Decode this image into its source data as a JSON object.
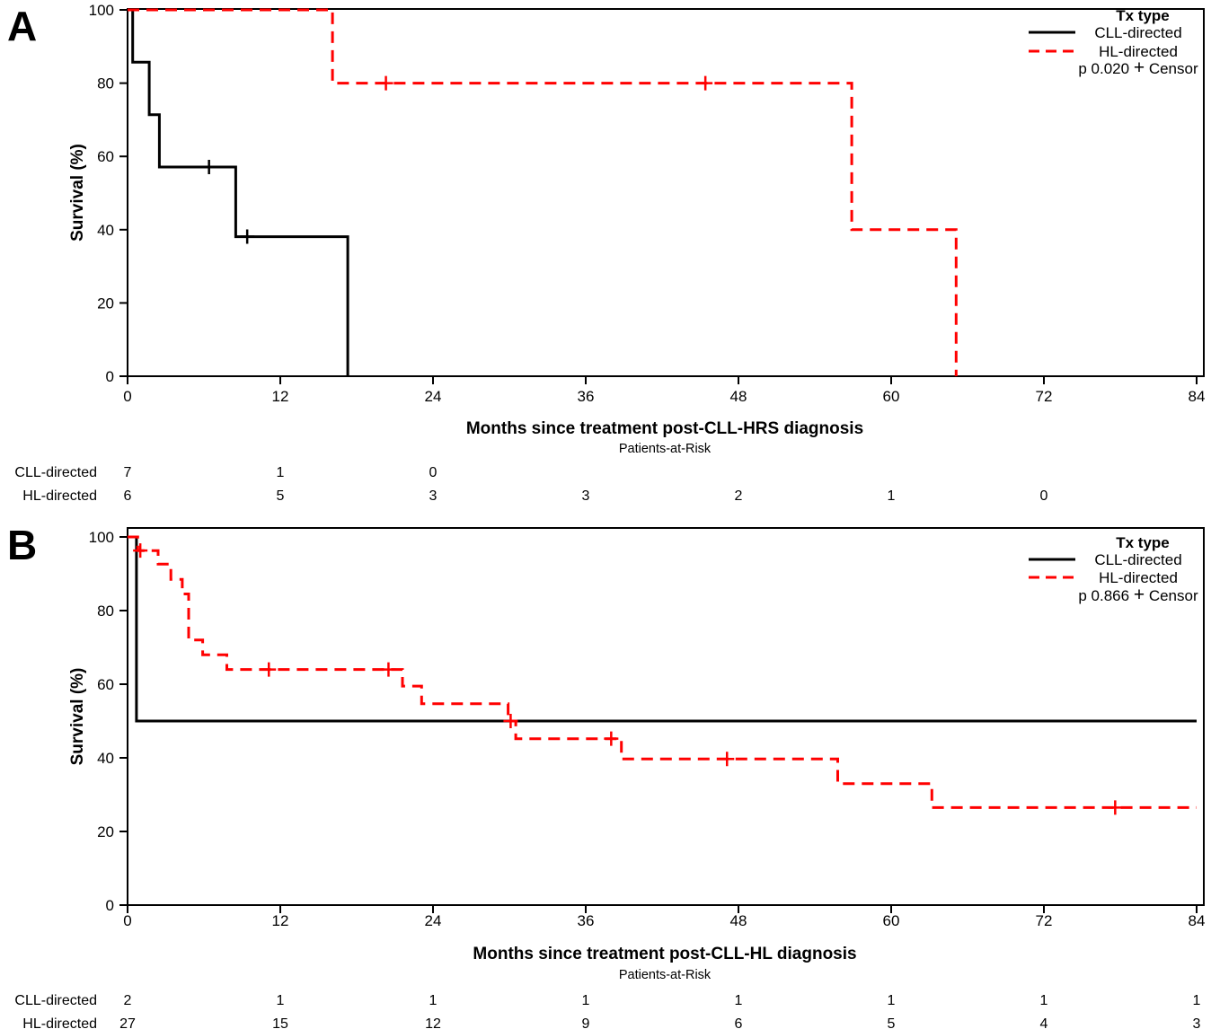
{
  "figure": {
    "panels": [
      {
        "label": "A",
        "legend": {
          "title": "Tx type",
          "entries": [
            {
              "label": "CLL-directed",
              "color": "#000000",
              "dash": false
            },
            {
              "label": "HL-directed",
              "color": "#FF0000",
              "dash": true
            }
          ],
          "p_label": "p 0.020",
          "censor_label": "Censor"
        },
        "risk_table": {
          "title": "Patients-at-Risk",
          "rows": [
            {
              "label": "CLL-directed",
              "values": [
                "7",
                "1",
                "0",
                "",
                "",
                "",
                "",
                ""
              ]
            },
            {
              "label": "HL-directed",
              "values": [
                "6",
                "5",
                "3",
                "3",
                "2",
                "1",
                "0",
                ""
              ]
            }
          ]
        }
      },
      {
        "label": "B",
        "legend": {
          "title": "Tx type",
          "entries": [
            {
              "label": "CLL-directed",
              "color": "#000000",
              "dash": false
            },
            {
              "label": "HL-directed",
              "color": "#FF0000",
              "dash": true
            }
          ],
          "p_label": "p 0.866",
          "censor_label": "Censor"
        },
        "risk_table": {
          "title": "Patients-at-Risk",
          "rows": [
            {
              "label": "CLL-directed",
              "values": [
                "2",
                "1",
                "1",
                "1",
                "1",
                "1",
                "1",
                "1"
              ]
            },
            {
              "label": "HL-directed",
              "values": [
                "27",
                "15",
                "12",
                "9",
                "6",
                "5",
                "4",
                "3"
              ]
            }
          ]
        }
      }
    ]
  },
  "chart_data": [
    {
      "type": "line",
      "subtype": "kaplan-meier-step",
      "title": "",
      "xlabel": "Months since treatment post-CLL-HRS diagnosis",
      "ylabel": "Survival (%)",
      "xlim": [
        0,
        84
      ],
      "xticks": [
        0,
        12,
        24,
        36,
        48,
        60,
        72,
        84
      ],
      "ylim": [
        0,
        100
      ],
      "yticks": [
        0,
        20,
        40,
        60,
        80,
        100
      ],
      "grid": false,
      "legend_position": "top-right",
      "p_value": "p 0.020",
      "series": [
        {
          "name": "CLL-directed",
          "color": "#000000",
          "dash": false,
          "end": 17.3,
          "steps": [
            [
              0,
              100
            ],
            [
              0.4,
              85.7
            ],
            [
              1.7,
              71.4
            ],
            [
              2.5,
              57.1
            ],
            [
              8.5,
              38.1
            ],
            [
              17.3,
              0
            ]
          ],
          "censors": [
            [
              6.4,
              57.1
            ],
            [
              9.4,
              38.1
            ]
          ]
        },
        {
          "name": "HL-directed",
          "color": "#FF0000",
          "dash": true,
          "end": 65.1,
          "steps": [
            [
              0,
              100
            ],
            [
              16.1,
              80
            ],
            [
              56.9,
              40
            ],
            [
              65.1,
              0
            ]
          ],
          "censors": [
            [
              20.3,
              80
            ],
            [
              45.4,
              80
            ]
          ]
        }
      ]
    },
    {
      "type": "line",
      "subtype": "kaplan-meier-step",
      "title": "",
      "xlabel": "Months since treatment post-CLL-HL diagnosis",
      "ylabel": "Survival (%)",
      "xlim": [
        0,
        84
      ],
      "xticks": [
        0,
        12,
        24,
        36,
        48,
        60,
        72,
        84
      ],
      "ylim": [
        0,
        100
      ],
      "yticks": [
        0,
        20,
        40,
        60,
        80,
        100
      ],
      "grid": false,
      "legend_position": "top-right",
      "p_value": "p 0.866",
      "series": [
        {
          "name": "CLL-directed",
          "color": "#000000",
          "dash": false,
          "end": 84,
          "steps": [
            [
              0,
              100
            ],
            [
              0.7,
              50
            ]
          ],
          "censors": []
        },
        {
          "name": "HL-directed",
          "color": "#FF0000",
          "dash": true,
          "end": 84,
          "steps": [
            [
              0,
              100
            ],
            [
              0.8,
              96.3
            ],
            [
              2.4,
              92.6
            ],
            [
              3.4,
              88.5
            ],
            [
              4.3,
              84.5
            ],
            [
              4.8,
              72
            ],
            [
              5.9,
              68
            ],
            [
              7.8,
              64
            ],
            [
              21.6,
              59.5
            ],
            [
              23.1,
              54.7
            ],
            [
              29.9,
              50
            ],
            [
              30.5,
              45.2
            ],
            [
              38.8,
              39.7
            ],
            [
              55.8,
              33
            ],
            [
              63.2,
              26.5
            ]
          ],
          "censors": [
            [
              1.0,
              96.3
            ],
            [
              11.1,
              64
            ],
            [
              20.5,
              64
            ],
            [
              30.1,
              50
            ],
            [
              38.0,
              45.2
            ],
            [
              47.1,
              39.7
            ],
            [
              77.6,
              26.5
            ]
          ]
        }
      ]
    }
  ]
}
